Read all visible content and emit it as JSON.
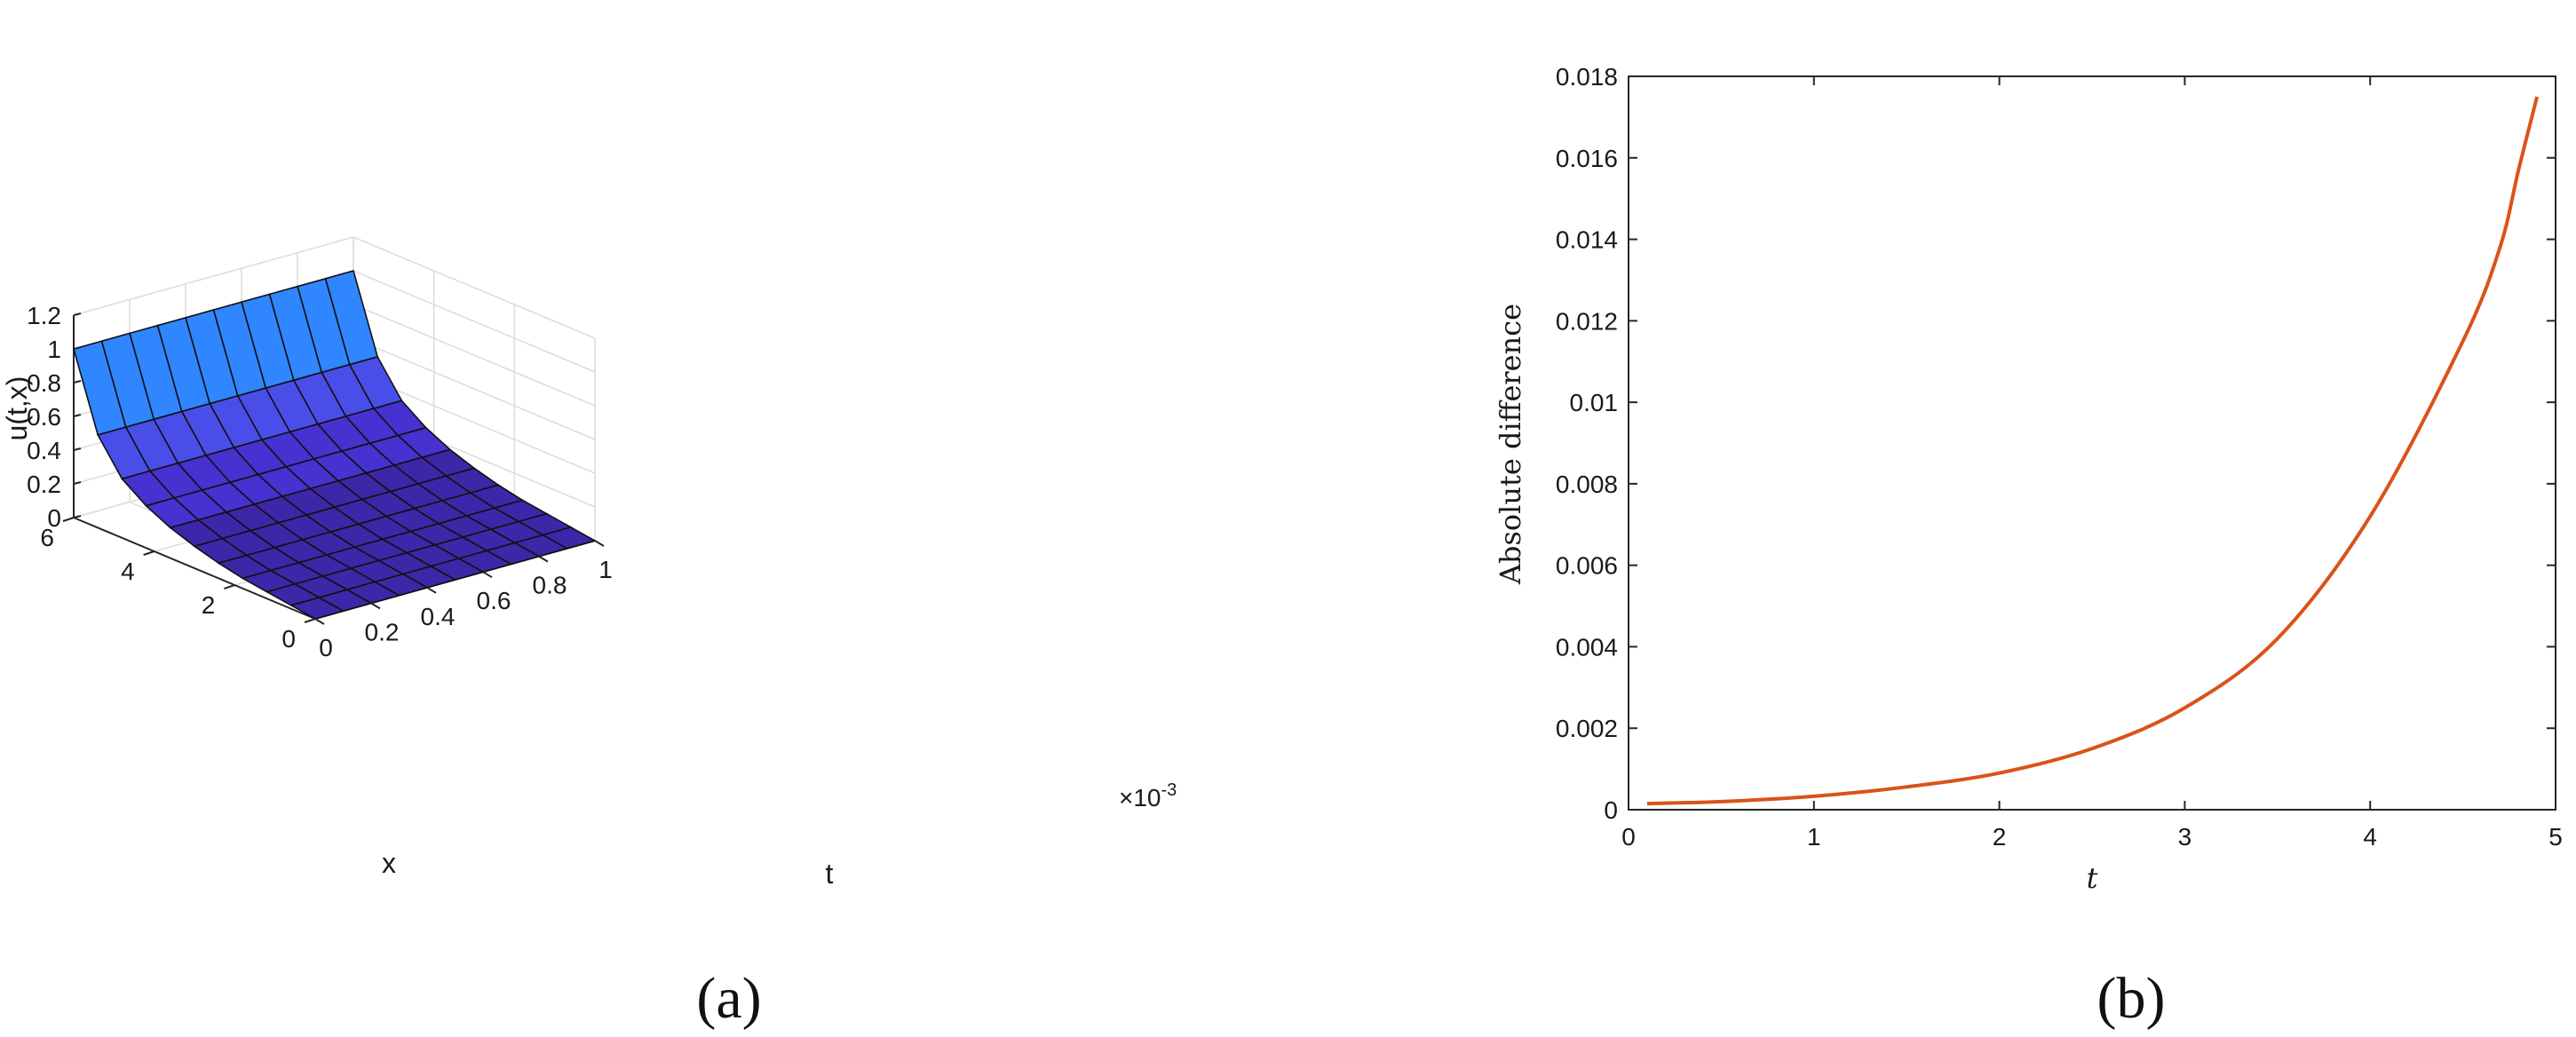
{
  "panels": [
    {
      "label": "(a)"
    },
    {
      "label": "(b)"
    }
  ],
  "chart_data": [
    {
      "type": "surface",
      "zlabel": "u(t,x)",
      "xlabel": "x",
      "tlabel": "t",
      "t_multiplier": "×10-3",
      "t_ticks": [
        0,
        0.2,
        0.4,
        0.6,
        0.8,
        1
      ],
      "t_ticklabels": [
        "0",
        "0.2",
        "0.4",
        "0.6",
        "0.8",
        "1"
      ],
      "x_ticks": [
        0,
        2,
        4,
        6
      ],
      "x_ticklabels": [
        "0",
        "2",
        "4",
        "6"
      ],
      "z_ticks": [
        0,
        0.2,
        0.4,
        0.6,
        0.8,
        1,
        1.2
      ],
      "z_ticklabels": [
        "0",
        "0.2",
        "0.4",
        "0.6",
        "0.8",
        "1",
        "1.2"
      ],
      "t_range": [
        0,
        1
      ],
      "x_range": [
        0,
        6
      ],
      "z_range": [
        0,
        1.2
      ],
      "grid": true,
      "t_nodes": [
        0,
        0.1,
        0.2,
        0.3,
        0.4,
        0.5,
        0.6,
        0.7,
        0.8,
        0.9,
        1.0
      ],
      "x_nodes": [
        0,
        0.6,
        1.2,
        1.8,
        2.4,
        3.0,
        3.6,
        4.2,
        4.8,
        5.4,
        6.0
      ],
      "u_profile": [
        0.0,
        0.02,
        0.04,
        0.06,
        0.09,
        0.13,
        0.18,
        0.25,
        0.35,
        0.55,
        1.0
      ],
      "colormap": [
        "#3e26a8",
        "#4632d0",
        "#4a4ee8",
        "#2f86ff",
        "#1cbfb4"
      ]
    },
    {
      "type": "line",
      "xlabel": "t",
      "ylabel": "Absolute difference",
      "xlim": [
        0,
        5
      ],
      "ylim": [
        0,
        0.018
      ],
      "x_ticks": [
        0,
        1,
        2,
        3,
        4,
        5
      ],
      "x_ticklabels": [
        "0",
        "1",
        "2",
        "3",
        "4",
        "5"
      ],
      "y_ticks": [
        0,
        0.002,
        0.004,
        0.006,
        0.008,
        0.01,
        0.012,
        0.014,
        0.016,
        0.018
      ],
      "y_ticklabels": [
        "0",
        "0.002",
        "0.004",
        "0.006",
        "0.008",
        "0.01",
        "0.012",
        "0.014",
        "0.016",
        "0.018"
      ],
      "grid": false,
      "series": [
        {
          "color": "#d95319",
          "x": [
            0.1,
            0.5,
            1.0,
            1.5,
            2.0,
            2.5,
            3.0,
            3.5,
            4.0,
            4.5,
            4.7,
            4.8,
            4.9
          ],
          "y": [
            0.00015,
            0.0002,
            0.00033,
            0.00056,
            0.0009,
            0.0015,
            0.0025,
            0.0042,
            0.0072,
            0.0115,
            0.0138,
            0.0157,
            0.0175
          ]
        }
      ]
    }
  ]
}
